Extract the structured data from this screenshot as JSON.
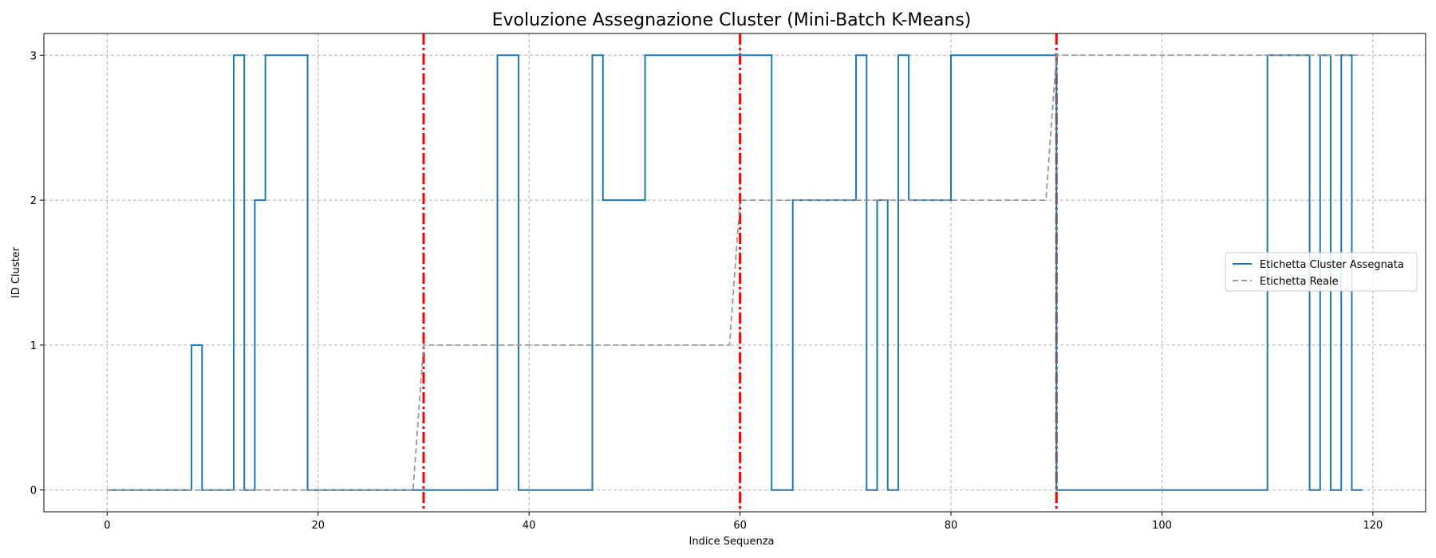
{
  "chart_data": {
    "type": "line",
    "title": "Evoluzione Assegnazione Cluster (Mini-Batch K-Means)",
    "xlabel": "Indice Sequenza",
    "ylabel": "ID Cluster",
    "xlim": [
      -6,
      125
    ],
    "ylim": [
      -0.15,
      3.15
    ],
    "xticks": [
      0,
      20,
      40,
      60,
      80,
      100,
      120
    ],
    "yticks": [
      0,
      1,
      2,
      3
    ],
    "grid": true,
    "legend_position": "center-right",
    "vlines": [
      30,
      60,
      90
    ],
    "vline_color": "#ff0000",
    "series": [
      {
        "name": "Etichetta Cluster Assegnata",
        "color": "#1f77b4",
        "style": "steps-post",
        "x": [
          0,
          8,
          9,
          12,
          13,
          14,
          15,
          19,
          37,
          39,
          46,
          47,
          51,
          63,
          65,
          71,
          72,
          73,
          74,
          75,
          76,
          80,
          90,
          110,
          114,
          115,
          116,
          117,
          118,
          119
        ],
        "values": [
          0,
          1,
          0,
          3,
          0,
          2,
          3,
          0,
          3,
          0,
          3,
          2,
          3,
          0,
          2,
          3,
          0,
          2,
          0,
          3,
          2,
          3,
          0,
          3,
          0,
          3,
          0,
          3,
          0,
          0
        ]
      },
      {
        "name": "Etichetta Reale",
        "color": "#999999",
        "style": "dashed",
        "x": [
          0,
          29,
          30,
          59,
          60,
          89,
          90,
          119
        ],
        "values": [
          0,
          0,
          1,
          1,
          2,
          2,
          3,
          3
        ]
      }
    ]
  }
}
